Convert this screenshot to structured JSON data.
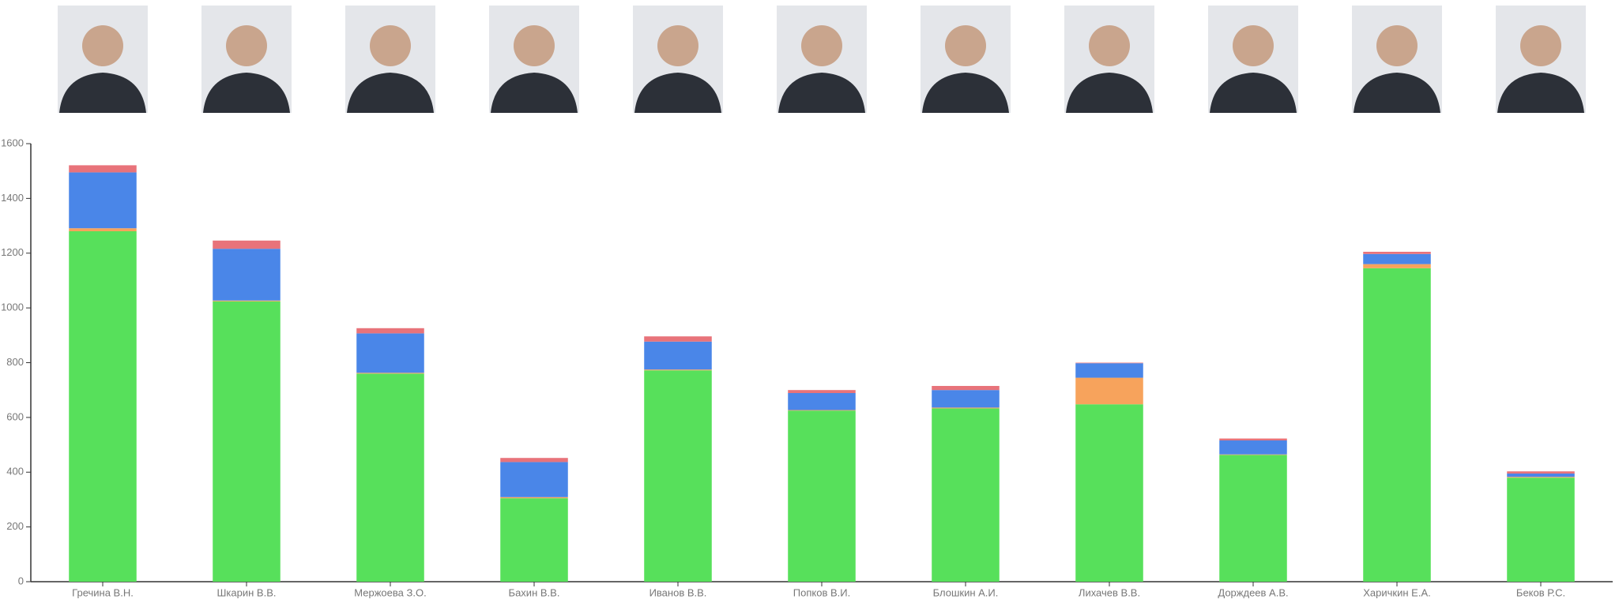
{
  "chart_data": {
    "type": "stacked_bar",
    "categories": [
      "Гречина В.Н.",
      "Шкарин В.В.",
      "Мержоева З.О.",
      "Бахин В.В.",
      "Иванов В.В.",
      "Попков В.И.",
      "Блошкин А.И.",
      "Лихачев В.В.",
      "Дорждеев А.В.",
      "Харичкин Е.А.",
      "Беков Р.С."
    ],
    "series": [
      {
        "color": "#57e05b",
        "values": [
          1280,
          1024,
          760,
          305,
          772,
          625,
          633,
          648,
          463,
          1145,
          380
        ]
      },
      {
        "color": "#f7a35c",
        "values": [
          11,
          3,
          3,
          4,
          3,
          2,
          3,
          97,
          2,
          15,
          3
        ]
      },
      {
        "color": "#4a86e8",
        "values": [
          204,
          189,
          144,
          128,
          102,
          62,
          64,
          53,
          51,
          37,
          12
        ]
      },
      {
        "color": "#e8737a",
        "values": [
          26,
          30,
          19,
          15,
          19,
          11,
          15,
          2,
          7,
          8,
          8
        ]
      }
    ],
    "ylim": [
      0,
      1600
    ],
    "yticks": [
      0,
      200,
      400,
      600,
      800,
      1000,
      1200,
      1400,
      1600
    ]
  }
}
